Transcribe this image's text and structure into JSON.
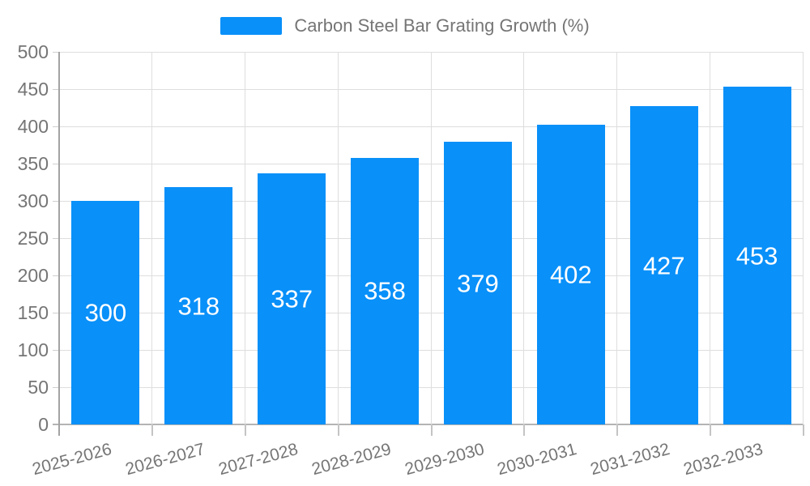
{
  "legend": {
    "label": "Carbon Steel Bar Grating Growth (%)"
  },
  "chart_data": {
    "type": "bar",
    "title": "Carbon Steel Bar Grating Growth (%)",
    "categories": [
      "2025-2026",
      "2026-2027",
      "2027-2028",
      "2028-2029",
      "2029-2030",
      "2030-2031",
      "2031-2032",
      "2032-2033"
    ],
    "values": [
      300,
      318,
      337,
      358,
      379,
      402,
      427,
      453
    ],
    "xlabel": "",
    "ylabel": "",
    "ylim": [
      0,
      500
    ],
    "ytick_step": 50,
    "yticks": [
      0,
      50,
      100,
      150,
      200,
      250,
      300,
      350,
      400,
      450,
      500
    ],
    "grid": true,
    "legend_position": "top-center",
    "bar_color": "#0990f9",
    "value_label_color": "#ffffff",
    "axis_text_color": "#757575"
  }
}
